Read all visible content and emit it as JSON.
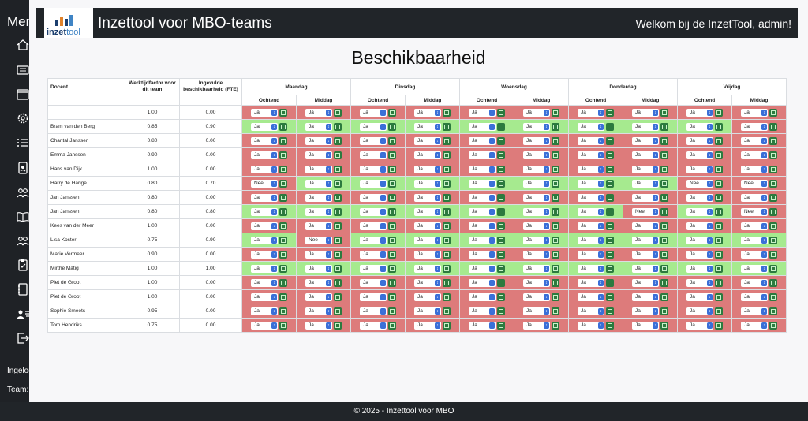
{
  "sidebar": {
    "title": "Menu",
    "icons": [
      "home-icon",
      "list-icon",
      "calendar-icon",
      "settings-icon",
      "list-bullets-icon",
      "person-card-icon",
      "users-icon",
      "book-icon",
      "users-group-icon",
      "clipboard-icon",
      "notebook-icon",
      "user-list-icon",
      "logout-icon"
    ],
    "logged_in": "Ingelogd",
    "team": "Team:"
  },
  "header": {
    "logo_text_bold": "inzet",
    "logo_text_light": "tool",
    "title": "Inzettool voor MBO-teams",
    "welcome": "Welkom bij de InzetTool, admin!"
  },
  "page": {
    "title": "Beschikbaarheid"
  },
  "table": {
    "col_docent": "Docent",
    "col_factor": "Werktijdfactor voor dit team",
    "col_fte": "Ingevulde beschikbaarheid (FTE)",
    "days": [
      "Maandag",
      "Dinsdag",
      "Woensdag",
      "Donderdag",
      "Vrijdag"
    ],
    "parts": [
      "Ochtend",
      "Middag"
    ],
    "rows": [
      {
        "name": "",
        "factor": "1.00",
        "fte": "0.00",
        "slots": [
          "Ja",
          "Ja",
          "Ja",
          "Ja",
          "Ja",
          "Ja",
          "Ja",
          "Ja",
          "Ja",
          "Ja"
        ],
        "colors": [
          "no",
          "no",
          "no",
          "no",
          "no",
          "no",
          "no",
          "no",
          "no",
          "no"
        ]
      },
      {
        "name": "Bram van den Berg",
        "factor": "0.85",
        "fte": "0.90",
        "slots": [
          "Ja",
          "Ja",
          "Ja",
          "Ja",
          "Ja",
          "Ja",
          "Ja",
          "Ja",
          "Ja",
          "Ja"
        ],
        "colors": [
          "yes",
          "yes",
          "yes",
          "yes",
          "yes",
          "yes",
          "yes",
          "yes",
          "yes",
          "no"
        ]
      },
      {
        "name": "Chantal Janssen",
        "factor": "0.80",
        "fte": "0.00",
        "slots": [
          "Ja",
          "Ja",
          "Ja",
          "Ja",
          "Ja",
          "Ja",
          "Ja",
          "Ja",
          "Ja",
          "Ja"
        ],
        "colors": [
          "no",
          "no",
          "no",
          "no",
          "no",
          "no",
          "no",
          "no",
          "no",
          "no"
        ]
      },
      {
        "name": "Emma Janssen",
        "factor": "0.90",
        "fte": "0.00",
        "slots": [
          "Ja",
          "Ja",
          "Ja",
          "Ja",
          "Ja",
          "Ja",
          "Ja",
          "Ja",
          "Ja",
          "Ja"
        ],
        "colors": [
          "no",
          "no",
          "no",
          "no",
          "no",
          "no",
          "no",
          "no",
          "no",
          "no"
        ]
      },
      {
        "name": "Hans van Dijk",
        "factor": "1.00",
        "fte": "0.00",
        "slots": [
          "Ja",
          "Ja",
          "Ja",
          "Ja",
          "Ja",
          "Ja",
          "Ja",
          "Ja",
          "Ja",
          "Ja"
        ],
        "colors": [
          "no",
          "no",
          "no",
          "no",
          "no",
          "no",
          "no",
          "no",
          "no",
          "no"
        ]
      },
      {
        "name": "Harry de Harige",
        "factor": "0.80",
        "fte": "0.70",
        "slots": [
          "Nee",
          "Ja",
          "Ja",
          "Ja",
          "Ja",
          "Ja",
          "Ja",
          "Ja",
          "Nee",
          "Nee"
        ],
        "colors": [
          "no",
          "yes",
          "yes",
          "yes",
          "yes",
          "yes",
          "yes",
          "yes",
          "no",
          "no"
        ]
      },
      {
        "name": "Jan Janssen",
        "factor": "0.80",
        "fte": "0.00",
        "slots": [
          "Ja",
          "Ja",
          "Ja",
          "Ja",
          "Ja",
          "Ja",
          "Ja",
          "Ja",
          "Ja",
          "Ja"
        ],
        "colors": [
          "no",
          "no",
          "no",
          "no",
          "no",
          "no",
          "no",
          "no",
          "no",
          "no"
        ]
      },
      {
        "name": "Jan Janssen",
        "factor": "0.80",
        "fte": "0.80",
        "slots": [
          "Ja",
          "Ja",
          "Ja",
          "Ja",
          "Ja",
          "Ja",
          "Ja",
          "Nee",
          "Ja",
          "Nee"
        ],
        "colors": [
          "yes",
          "yes",
          "yes",
          "yes",
          "yes",
          "yes",
          "yes",
          "no",
          "yes",
          "no"
        ]
      },
      {
        "name": "Kees van der Meer",
        "factor": "1.00",
        "fte": "0.00",
        "slots": [
          "Ja",
          "Ja",
          "Ja",
          "Ja",
          "Ja",
          "Ja",
          "Ja",
          "Ja",
          "Ja",
          "Ja"
        ],
        "colors": [
          "no",
          "no",
          "no",
          "no",
          "no",
          "no",
          "no",
          "no",
          "no",
          "no"
        ]
      },
      {
        "name": "Lisa Koster",
        "factor": "0.75",
        "fte": "0.90",
        "slots": [
          "Ja",
          "Nee",
          "Ja",
          "Ja",
          "Ja",
          "Ja",
          "Ja",
          "Ja",
          "Ja",
          "Ja"
        ],
        "colors": [
          "yes",
          "no",
          "yes",
          "yes",
          "yes",
          "yes",
          "yes",
          "yes",
          "yes",
          "yes"
        ]
      },
      {
        "name": "Marie Vermeer",
        "factor": "0.90",
        "fte": "0.00",
        "slots": [
          "Ja",
          "Ja",
          "Ja",
          "Ja",
          "Ja",
          "Ja",
          "Ja",
          "Ja",
          "Ja",
          "Ja"
        ],
        "colors": [
          "no",
          "no",
          "no",
          "no",
          "no",
          "no",
          "no",
          "no",
          "no",
          "no"
        ]
      },
      {
        "name": "Mirthe Matig",
        "factor": "1.00",
        "fte": "1.00",
        "slots": [
          "Ja",
          "Ja",
          "Ja",
          "Ja",
          "Ja",
          "Ja",
          "Ja",
          "Ja",
          "Ja",
          "Ja"
        ],
        "colors": [
          "yes",
          "yes",
          "yes",
          "yes",
          "yes",
          "yes",
          "yes",
          "yes",
          "yes",
          "yes"
        ]
      },
      {
        "name": "Piet de Groot",
        "factor": "1.00",
        "fte": "0.00",
        "slots": [
          "Ja",
          "Ja",
          "Ja",
          "Ja",
          "Ja",
          "Ja",
          "Ja",
          "Ja",
          "Ja",
          "Ja"
        ],
        "colors": [
          "no",
          "no",
          "no",
          "no",
          "no",
          "no",
          "no",
          "no",
          "no",
          "no"
        ]
      },
      {
        "name": "Piet de Groot",
        "factor": "1.00",
        "fte": "0.00",
        "slots": [
          "Ja",
          "Ja",
          "Ja",
          "Ja",
          "Ja",
          "Ja",
          "Ja",
          "Ja",
          "Ja",
          "Ja"
        ],
        "colors": [
          "no",
          "no",
          "no",
          "no",
          "no",
          "no",
          "no",
          "no",
          "no",
          "no"
        ]
      },
      {
        "name": "Sophie Smeets",
        "factor": "0.95",
        "fte": "0.00",
        "slots": [
          "Ja",
          "Ja",
          "Ja",
          "Ja",
          "Ja",
          "Ja",
          "Ja",
          "Ja",
          "Ja",
          "Ja"
        ],
        "colors": [
          "no",
          "no",
          "no",
          "no",
          "no",
          "no",
          "no",
          "no",
          "no",
          "no"
        ]
      },
      {
        "name": "Tom Hendriks",
        "factor": "0.75",
        "fte": "0.00",
        "slots": [
          "Ja",
          "Ja",
          "Ja",
          "Ja",
          "Ja",
          "Ja",
          "Ja",
          "Ja",
          "Ja",
          "Ja"
        ],
        "colors": [
          "no",
          "no",
          "no",
          "no",
          "no",
          "no",
          "no",
          "no",
          "no",
          "no"
        ]
      }
    ]
  },
  "footer": {
    "text": "© 2025 - Inzettool voor MBO"
  }
}
